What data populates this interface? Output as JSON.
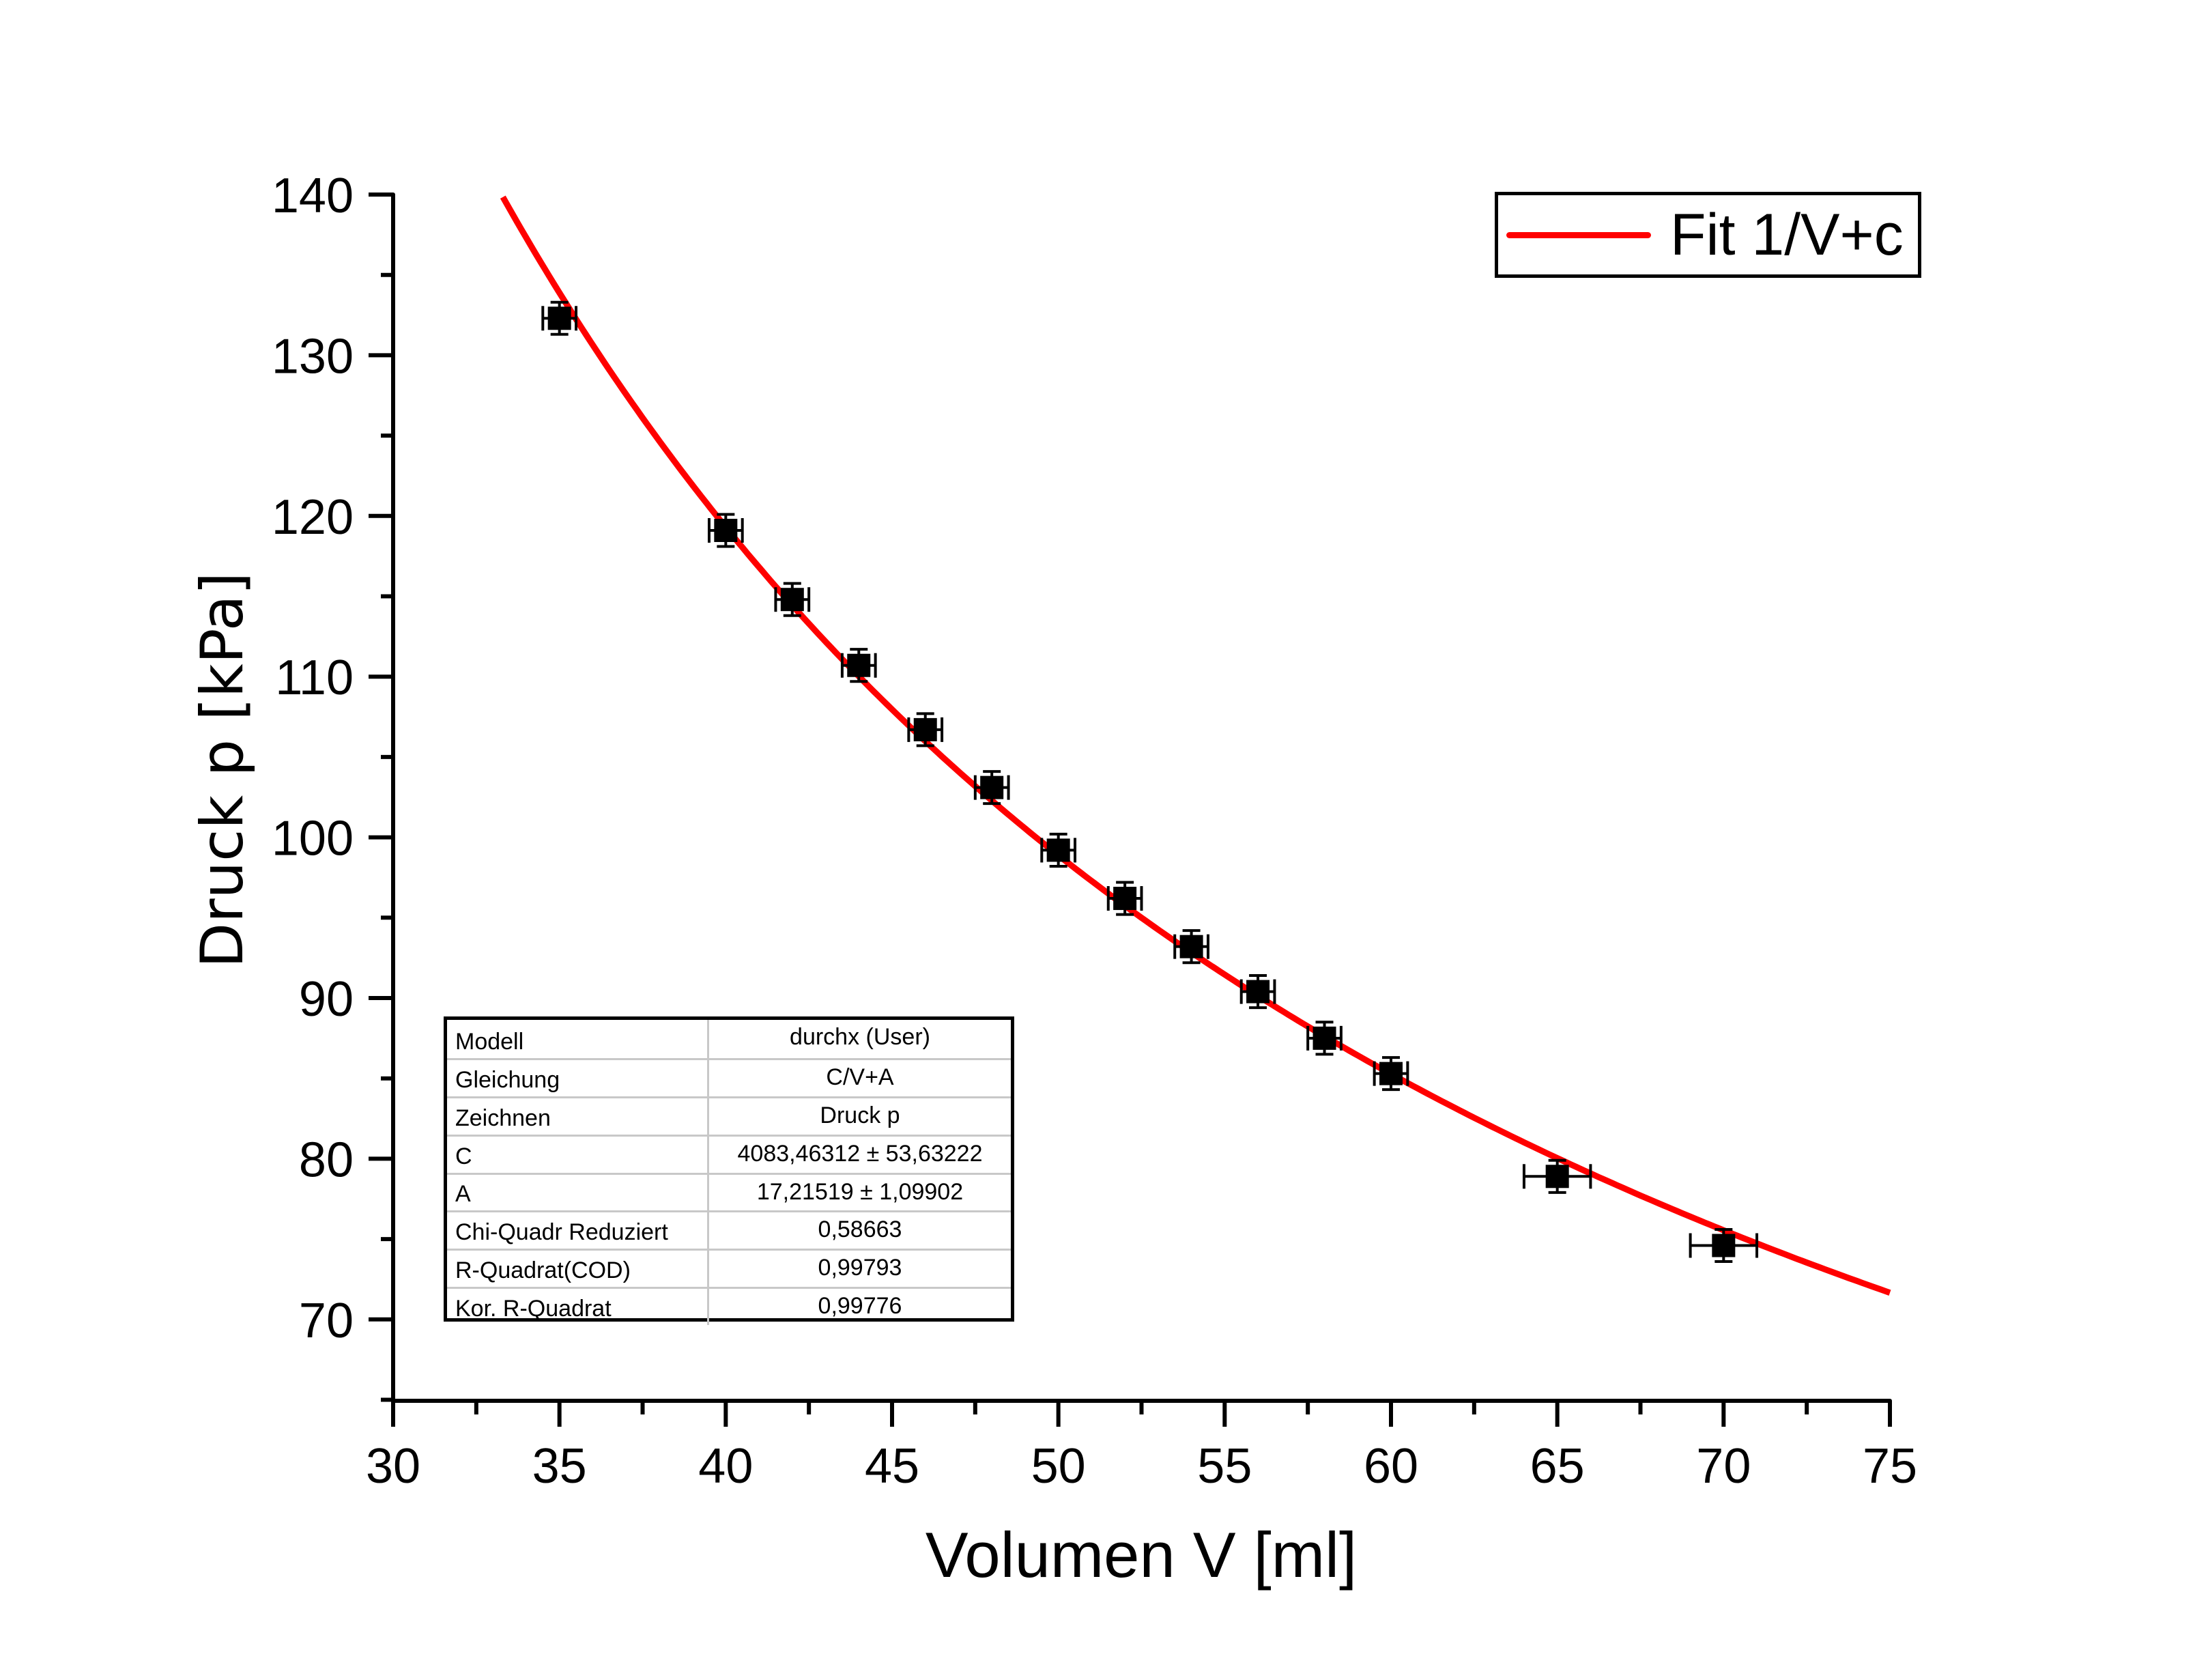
{
  "chart_data": {
    "type": "scatter",
    "title": "",
    "xlabel": "Volumen V [ml]",
    "ylabel": "Druck p [kPa]",
    "xlim": [
      30,
      75
    ],
    "ylim": [
      65,
      140
    ],
    "x_ticks": [
      30,
      35,
      40,
      45,
      50,
      55,
      60,
      65,
      70,
      75
    ],
    "y_ticks": [
      70,
      80,
      90,
      100,
      110,
      120,
      130,
      140
    ],
    "grid": false,
    "legend_position": "top-right",
    "series": [
      {
        "name": "Druck p",
        "kind": "points-with-errorbars",
        "marker": "square",
        "color": "#000000",
        "x": [
          35,
          40,
          42,
          44,
          46,
          48,
          50,
          52,
          54,
          56,
          58,
          60,
          65,
          70
        ],
        "y": [
          132.3,
          119.1,
          114.8,
          110.7,
          106.7,
          103.1,
          99.2,
          96.2,
          93.2,
          90.4,
          87.5,
          85.3,
          78.9,
          74.6
        ],
        "x_err": [
          0.5,
          0.5,
          0.5,
          0.5,
          0.5,
          0.5,
          0.5,
          0.5,
          0.5,
          0.5,
          0.5,
          0.5,
          1.0,
          1.0
        ],
        "y_err": [
          1.0,
          1.0,
          1.0,
          1.0,
          1.0,
          1.0,
          1.0,
          1.0,
          1.0,
          1.0,
          1.0,
          1.0,
          1.0,
          1.0
        ]
      },
      {
        "name": "Fit 1/V+c",
        "kind": "fit-line",
        "color": "#ff0000",
        "equation": "C/V+A",
        "params": {
          "C": 4083.46312,
          "A": 17.21519
        },
        "x_range": [
          33.3,
          75
        ]
      }
    ],
    "legend": [
      {
        "label": "Fit 1/V+c",
        "color": "#ff0000"
      }
    ]
  },
  "fit_table": {
    "rows": [
      {
        "key": "Modell",
        "value": "durchx (User)"
      },
      {
        "key": "Gleichung",
        "value": "C/V+A"
      },
      {
        "key": "Zeichnen",
        "value": "Druck p"
      },
      {
        "key": "C",
        "value": "4083,46312 ± 53,63222"
      },
      {
        "key": "A",
        "value": "17,21519 ± 1,09902"
      },
      {
        "key": "Chi-Quadr Reduziert",
        "value": "0,58663"
      },
      {
        "key": "R-Quadrat(COD)",
        "value": "0,99793"
      },
      {
        "key": "Kor. R-Quadrat",
        "value": "0,99776"
      }
    ]
  }
}
